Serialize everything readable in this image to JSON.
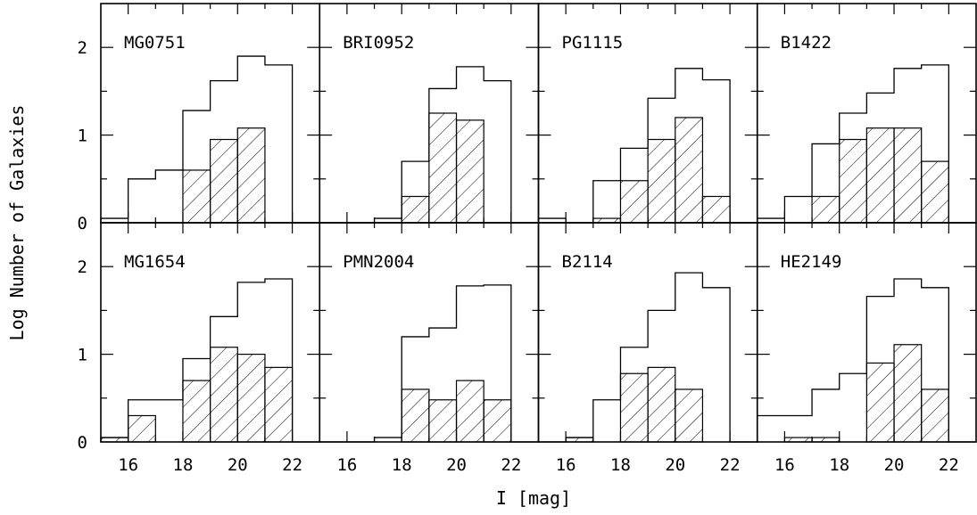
{
  "figure": {
    "xlabel": "I [mag]",
    "ylabel": "Log Number of Galaxies"
  },
  "chart_data": {
    "type": "histogram",
    "grid": false,
    "layout": "2 rows x 4 columns, shared axes",
    "xlabel": "I [mag]",
    "ylabel": "Log Number of Galaxies",
    "xlim": [
      15,
      23
    ],
    "ylim": [
      0,
      2.5
    ],
    "bin_width": 1,
    "bin_edges": [
      15,
      16,
      17,
      18,
      19,
      20,
      21,
      22,
      23
    ],
    "x_ticks": [
      16,
      18,
      20,
      22
    ],
    "x_tick_labels": [
      "16",
      "18",
      "20",
      "22"
    ],
    "y_ticks": [
      0,
      1,
      2
    ],
    "y_tick_labels": [
      "0",
      "1",
      "2"
    ],
    "series_styles": {
      "total": "open outline",
      "subset": "hatched"
    },
    "panels": [
      {
        "name": "MG0751",
        "total": [
          0.05,
          0.5,
          0.6,
          1.28,
          1.62,
          1.9,
          1.8,
          0
        ],
        "subset": [
          0,
          0,
          0,
          0.6,
          0.95,
          1.08,
          0,
          0
        ]
      },
      {
        "name": "BRI0952",
        "total": [
          0,
          0,
          0.05,
          0.7,
          1.53,
          1.78,
          1.62,
          0
        ],
        "subset": [
          0,
          0,
          0,
          0.3,
          1.25,
          1.17,
          0,
          0
        ]
      },
      {
        "name": "PG1115",
        "total": [
          0.05,
          0,
          0.48,
          0.85,
          1.42,
          1.76,
          1.63,
          0
        ],
        "subset": [
          0,
          0,
          0.05,
          0.48,
          0.95,
          1.2,
          0.3,
          0
        ]
      },
      {
        "name": "B1422",
        "total": [
          0.05,
          0.3,
          0.9,
          1.25,
          1.48,
          1.76,
          1.8,
          0
        ],
        "subset": [
          0,
          0,
          0.3,
          0.95,
          1.08,
          1.08,
          0.7,
          0
        ]
      },
      {
        "name": "MG1654",
        "total": [
          0.05,
          0.48,
          0.48,
          0.95,
          1.43,
          1.82,
          1.86,
          0
        ],
        "subset": [
          0.05,
          0.3,
          0,
          0.7,
          1.08,
          1.0,
          0.85,
          0
        ]
      },
      {
        "name": "PMN2004",
        "total": [
          0,
          0,
          0.05,
          1.2,
          1.3,
          1.78,
          1.79,
          0
        ],
        "subset": [
          0,
          0,
          0,
          0.6,
          0.48,
          0.7,
          0.48,
          0
        ]
      },
      {
        "name": "B2114",
        "total": [
          0,
          0.05,
          0.48,
          1.08,
          1.5,
          1.93,
          1.76,
          0
        ],
        "subset": [
          0,
          0.05,
          0,
          0.78,
          0.85,
          0.6,
          0,
          0
        ]
      },
      {
        "name": "HE2149",
        "total": [
          0.3,
          0.3,
          0.6,
          0.78,
          1.66,
          1.86,
          1.76,
          0
        ],
        "subset": [
          0,
          0.05,
          0.05,
          0,
          0.9,
          1.11,
          0.6,
          0
        ]
      }
    ]
  }
}
